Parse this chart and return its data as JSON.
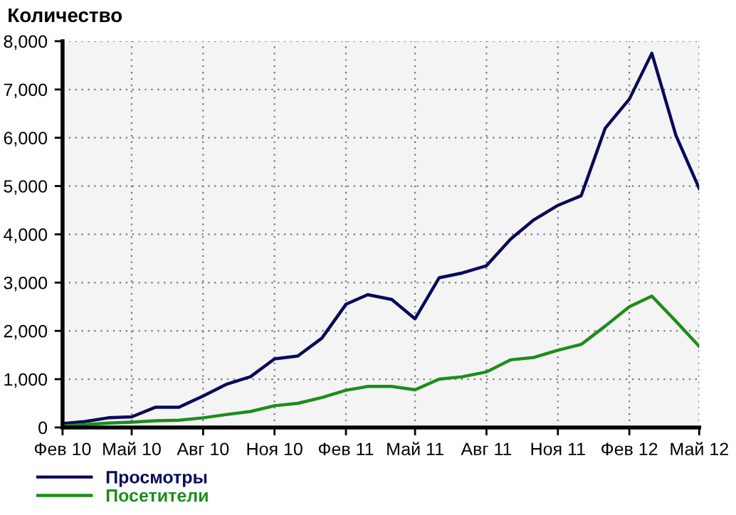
{
  "chart_data": {
    "type": "line",
    "title": "Количество",
    "x": [
      "2010-02",
      "2010-03",
      "2010-04",
      "2010-05",
      "2010-06",
      "2010-07",
      "2010-08",
      "2010-09",
      "2010-10",
      "2010-11",
      "2010-12",
      "2011-01",
      "2011-02",
      "2011-03",
      "2011-04",
      "2011-05",
      "2011-06",
      "2011-07",
      "2011-08",
      "2011-09",
      "2011-10",
      "2011-11",
      "2011-12",
      "2012-01",
      "2012-02",
      "2012-03",
      "2012-04",
      "2012-05"
    ],
    "series": [
      {
        "name": "Просмотры",
        "color": "#0a0a5a",
        "values": [
          80,
          120,
          200,
          220,
          420,
          420,
          650,
          900,
          1050,
          1420,
          1480,
          1850,
          2550,
          2750,
          2650,
          2250,
          3100,
          3200,
          3350,
          3900,
          4300,
          4600,
          4800,
          6200,
          6800,
          7750,
          6050,
          4950
        ]
      },
      {
        "name": "Посетители",
        "color": "#1e8c1e",
        "values": [
          30,
          60,
          90,
          110,
          140,
          150,
          200,
          270,
          330,
          450,
          500,
          620,
          770,
          850,
          850,
          780,
          1000,
          1050,
          1150,
          1400,
          1450,
          1600,
          1720,
          2100,
          2500,
          2720,
          2200,
          1680
        ]
      }
    ],
    "xlim": [
      "2010-02",
      "2012-05"
    ],
    "xticks": [
      {
        "value": "2010-02",
        "label": "Фев 10"
      },
      {
        "value": "2010-05",
        "label": "Май 10"
      },
      {
        "value": "2010-08",
        "label": "Авг 10"
      },
      {
        "value": "2010-11",
        "label": "Ноя 10"
      },
      {
        "value": "2011-02",
        "label": "Фев 11"
      },
      {
        "value": "2011-05",
        "label": "Май 11"
      },
      {
        "value": "2011-08",
        "label": "Авг 11"
      },
      {
        "value": "2011-11",
        "label": "Ноя 11"
      },
      {
        "value": "2012-02",
        "label": "Фев 12"
      },
      {
        "value": "2012-05",
        "label": "Май 12"
      }
    ],
    "ylim": [
      0,
      8000
    ],
    "yticks": [
      {
        "value": 0,
        "label": "0"
      },
      {
        "value": 1000,
        "label": "1,000"
      },
      {
        "value": 2000,
        "label": "2,000"
      },
      {
        "value": 3000,
        "label": "3,000"
      },
      {
        "value": 4000,
        "label": "4,000"
      },
      {
        "value": 5000,
        "label": "5,000"
      },
      {
        "value": 6000,
        "label": "6,000"
      },
      {
        "value": 7000,
        "label": "7,000"
      },
      {
        "value": 8000,
        "label": "8,000"
      }
    ],
    "grid": true,
    "legend": "bottom left",
    "marker": "none",
    "line_style": "solid"
  }
}
